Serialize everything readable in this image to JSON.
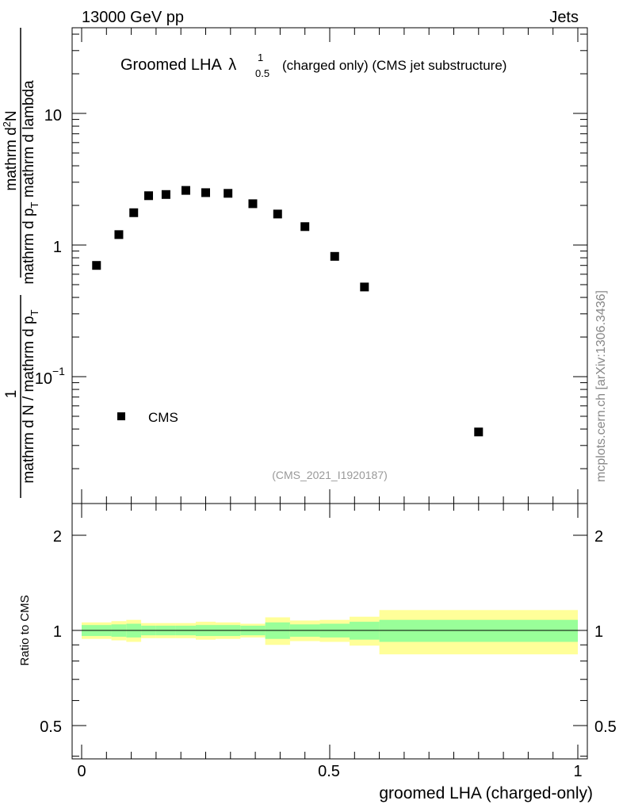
{
  "header": {
    "left": "13000 GeV pp",
    "right": "Jets"
  },
  "title": {
    "main": "Groomed LHA",
    "lambda": "λ",
    "sup": "1",
    "sub": "0.5",
    "rest": "(charged only) (CMS jet substructure)"
  },
  "watermark": "(CMS_2021_I1920187)",
  "side_credit": "mcplots.cern.ch [arXiv:1306.3436]",
  "legend": {
    "label": "CMS"
  },
  "main_ylabel": {
    "numerator_1": "1",
    "denominator": "mathrm d N / mathrm d p",
    "den_sub": "T",
    "numerator_2": "mathrm d",
    "num2_sup": "2",
    "numerator_2b": "N",
    "denominator_2": "mathrm d p",
    "den2_sub": "T",
    "denominator_2b": "mathrm d lambda"
  },
  "ratio_ylabel": "Ratio to CMS",
  "xlabel": "groomed LHA (charged-only)",
  "colors": {
    "marker": "#000000",
    "band_inner": "#99ff99",
    "band_outer": "#ffff99"
  },
  "chart_data": [
    {
      "type": "scatter",
      "title": "Groomed LHA λ^1_0.5 (charged only) (CMS jet substructure)",
      "xlabel": "groomed LHA (charged-only)",
      "ylabel": "1 / (mathrm d N / mathrm d p_T) · mathrm d^2 N / (mathrm d p_T mathrm d lambda)",
      "yscale": "log",
      "xlim": [
        -0.02,
        1.04
      ],
      "ylim": [
        0.012,
        45
      ],
      "xticks": [
        0,
        0.5,
        1
      ],
      "xtick_labels": [
        "0",
        "0.5",
        "1"
      ],
      "yticks": [
        0.1,
        1,
        10
      ],
      "ytick_labels": [
        "10−1",
        "1",
        "10"
      ],
      "legend": "lower-left",
      "series": [
        {
          "name": "CMS",
          "x": [
            0.03,
            0.075,
            0.105,
            0.135,
            0.17,
            0.21,
            0.25,
            0.295,
            0.345,
            0.395,
            0.45,
            0.51,
            0.57,
            0.8
          ],
          "y": [
            0.7,
            1.2,
            1.76,
            2.37,
            2.42,
            2.6,
            2.5,
            2.47,
            2.06,
            1.72,
            1.38,
            0.82,
            0.48,
            0.038
          ]
        }
      ]
    },
    {
      "type": "area",
      "title": "",
      "xlabel": "groomed LHA (charged-only)",
      "ylabel": "Ratio to CMS",
      "ylim": [
        0.38,
        2.5
      ],
      "yticks": [
        0.5,
        1,
        2
      ],
      "ytick_labels": [
        "0.5",
        "1",
        "2"
      ],
      "reference_line": 1,
      "bins": [
        {
          "x0": 0.0,
          "x1": 0.06,
          "inner": [
            0.96,
            1.04
          ],
          "outer": [
            0.94,
            1.06
          ]
        },
        {
          "x0": 0.06,
          "x1": 0.09,
          "inner": [
            0.955,
            1.045
          ],
          "outer": [
            0.93,
            1.07
          ]
        },
        {
          "x0": 0.09,
          "x1": 0.12,
          "inner": [
            0.95,
            1.05
          ],
          "outer": [
            0.92,
            1.08
          ]
        },
        {
          "x0": 0.12,
          "x1": 0.15,
          "inner": [
            0.965,
            1.035
          ],
          "outer": [
            0.945,
            1.055
          ]
        },
        {
          "x0": 0.15,
          "x1": 0.19,
          "inner": [
            0.965,
            1.035
          ],
          "outer": [
            0.945,
            1.055
          ]
        },
        {
          "x0": 0.19,
          "x1": 0.23,
          "inner": [
            0.965,
            1.035
          ],
          "outer": [
            0.945,
            1.055
          ]
        },
        {
          "x0": 0.23,
          "x1": 0.27,
          "inner": [
            0.96,
            1.04
          ],
          "outer": [
            0.935,
            1.065
          ]
        },
        {
          "x0": 0.27,
          "x1": 0.32,
          "inner": [
            0.96,
            1.04
          ],
          "outer": [
            0.94,
            1.06
          ]
        },
        {
          "x0": 0.32,
          "x1": 0.37,
          "inner": [
            0.965,
            1.035
          ],
          "outer": [
            0.95,
            1.05
          ]
        },
        {
          "x0": 0.37,
          "x1": 0.42,
          "inner": [
            0.94,
            1.06
          ],
          "outer": [
            0.9,
            1.1
          ]
        },
        {
          "x0": 0.42,
          "x1": 0.48,
          "inner": [
            0.955,
            1.045
          ],
          "outer": [
            0.925,
            1.075
          ]
        },
        {
          "x0": 0.48,
          "x1": 0.54,
          "inner": [
            0.95,
            1.05
          ],
          "outer": [
            0.92,
            1.08
          ]
        },
        {
          "x0": 0.54,
          "x1": 0.6,
          "inner": [
            0.935,
            1.065
          ],
          "outer": [
            0.895,
            1.105
          ]
        },
        {
          "x0": 0.6,
          "x1": 1.0,
          "inner": [
            0.92,
            1.08
          ],
          "outer": [
            0.84,
            1.16
          ]
        }
      ]
    }
  ]
}
